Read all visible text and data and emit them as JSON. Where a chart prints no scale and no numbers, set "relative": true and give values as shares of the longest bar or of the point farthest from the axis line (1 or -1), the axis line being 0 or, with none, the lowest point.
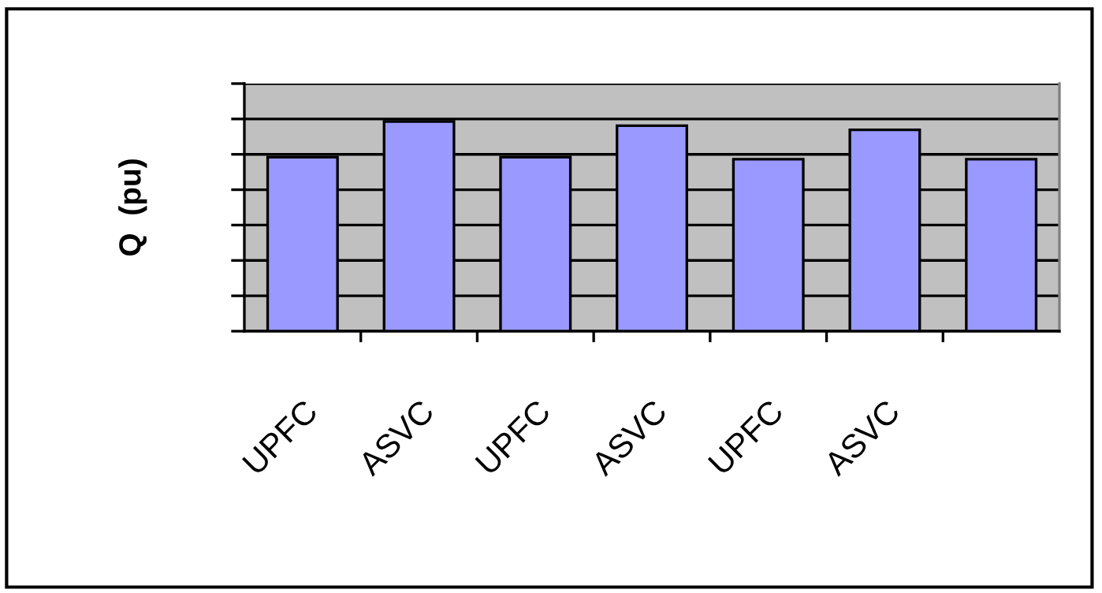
{
  "chart_data": {
    "type": "bar",
    "ylabel": "Q  (pu)",
    "relative": true,
    "categories": [
      "UPFC",
      "ASVC",
      "UPFC",
      "ASVC",
      "UPFC",
      "ASVC",
      null
    ],
    "values": [
      0.83,
      1,
      0.83,
      0.98,
      0.82,
      0.96,
      0.82
    ],
    "color": "#9999ff",
    "grid": "y"
  }
}
